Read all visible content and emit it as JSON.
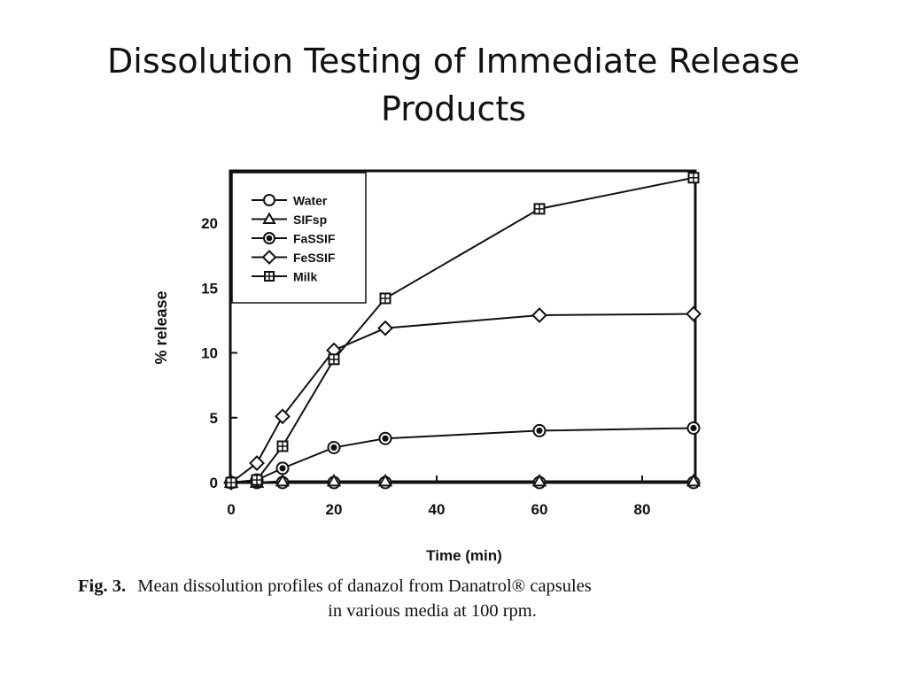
{
  "slide": {
    "title_line1": "Dissolution Testing of Immediate Release",
    "title_line2": "Products"
  },
  "caption": {
    "label": "Fig. 3.",
    "text_line1": "Mean dissolution profiles of danazol from Danatrol® capsules",
    "text_line2": "in various media at 100 rpm."
  },
  "colors": {
    "ink": "#111111",
    "background": "#ffffff"
  },
  "chart_data": {
    "type": "line",
    "title": "",
    "xlabel": "Time (min)",
    "ylabel": "% release",
    "xlim": [
      0,
      90
    ],
    "ylim": [
      0,
      24
    ],
    "xticks": [
      0,
      20,
      40,
      60,
      80
    ],
    "yticks": [
      0,
      5,
      10,
      15,
      20
    ],
    "grid": false,
    "legend_position": "top-left",
    "x": [
      0,
      5,
      10,
      20,
      30,
      60,
      90
    ],
    "series": [
      {
        "name": "Water",
        "marker": "circle",
        "values": [
          0,
          0,
          0,
          0,
          0,
          0,
          0
        ]
      },
      {
        "name": "SIFsp",
        "marker": "triangle",
        "values": [
          0,
          0,
          0.1,
          0.1,
          0.1,
          0.1,
          0.1
        ]
      },
      {
        "name": "FaSSIF",
        "marker": "filled-circle",
        "values": [
          0,
          0.2,
          1.1,
          2.7,
          3.4,
          4.0,
          4.2
        ]
      },
      {
        "name": "FeSSIF",
        "marker": "diamond",
        "values": [
          0,
          1.5,
          5.1,
          10.2,
          11.9,
          12.9,
          13.0
        ]
      },
      {
        "name": "Milk",
        "marker": "square-cross",
        "values": [
          0,
          0.2,
          2.8,
          9.5,
          14.2,
          21.1,
          23.5
        ]
      }
    ]
  }
}
